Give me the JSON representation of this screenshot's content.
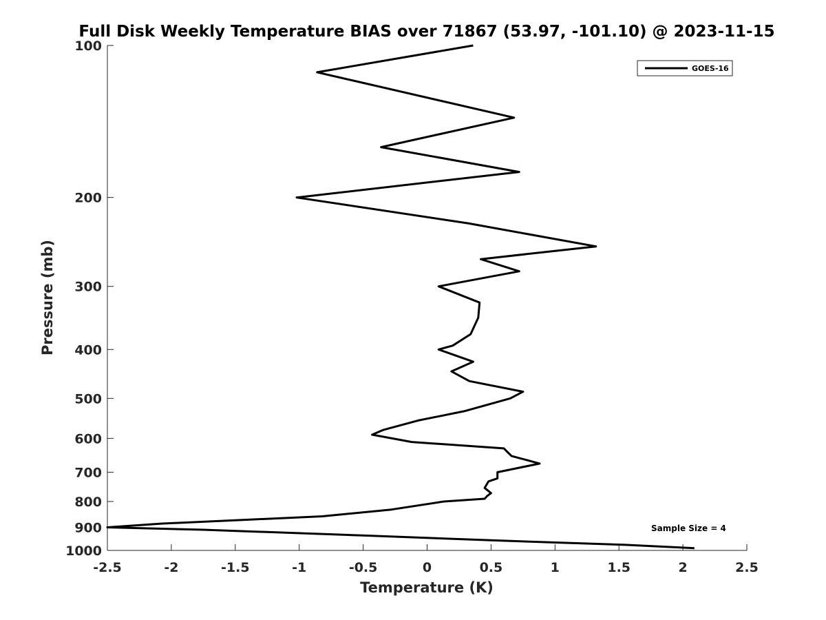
{
  "chart_data": {
    "type": "line",
    "title": "Full Disk Weekly Temperature BIAS over 71867 (53.97, -101.10) @ 2023-11-15",
    "xlabel": "Temperature (K)",
    "ylabel": "Pressure (mb)",
    "xlim": [
      -2.5,
      2.5
    ],
    "ylim": [
      100,
      1000
    ],
    "yscale": "log",
    "y_reversed": true,
    "xticks": [
      -2.5,
      -2,
      -1.5,
      -1,
      -0.5,
      0,
      0.5,
      1,
      1.5,
      2,
      2.5
    ],
    "xtick_labels": [
      "-2.5",
      "-2",
      "-1.5",
      "-1",
      "-0.5",
      "0",
      "0.5",
      "1",
      "1.5",
      "2",
      "2.5"
    ],
    "yticks": [
      100,
      200,
      300,
      400,
      500,
      600,
      700,
      800,
      900,
      1000
    ],
    "ytick_labels": [
      "100",
      "200",
      "300",
      "400",
      "500",
      "600",
      "700",
      "800",
      "900",
      "1000"
    ],
    "grid": false,
    "legend_position": "top-right",
    "line_color": "#000000",
    "series": [
      {
        "name": "GOES-16",
        "x": [
          0.36,
          -0.86,
          0.68,
          -0.36,
          0.72,
          -1.02,
          0.32,
          1.32,
          0.42,
          0.72,
          0.09,
          0.41,
          0.4,
          0.34,
          0.2,
          0.09,
          0.36,
          0.19,
          0.33,
          0.75,
          0.65,
          0.29,
          -0.07,
          -0.34,
          -0.43,
          -0.12,
          0.6,
          0.66,
          0.88,
          0.55,
          0.55,
          0.48,
          0.45,
          0.5,
          0.47,
          0.45,
          0.13,
          -0.28,
          -0.82,
          -2.08,
          -2.5,
          -1.75,
          -0.45,
          0.5,
          1.55,
          2.09
        ],
        "y": [
          100,
          113,
          139,
          159,
          178,
          200,
          225,
          250,
          265,
          280,
          300,
          323,
          346,
          373,
          393,
          400,
          423,
          442,
          462,
          485,
          500,
          530,
          553,
          577,
          590,
          610,
          628,
          650,
          673,
          700,
          720,
          730,
          752,
          770,
          780,
          790,
          800,
          830,
          856,
          885,
          900,
          910,
          935,
          955,
          975,
          990
        ]
      }
    ],
    "annotations": [
      "Sample Size = 4"
    ]
  }
}
